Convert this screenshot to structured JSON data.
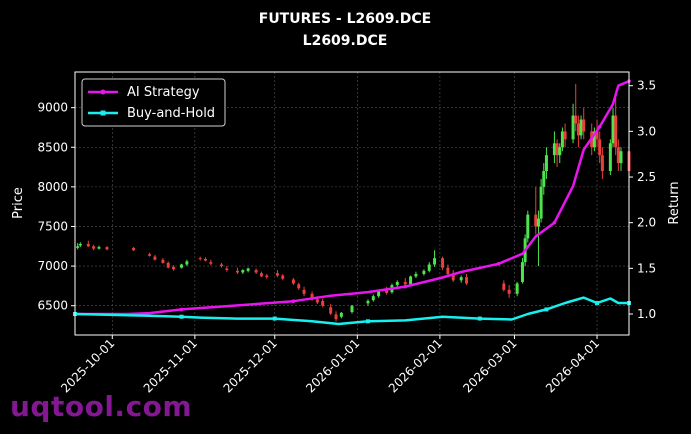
{
  "chart_data": {
    "type": "line",
    "title": "FUTURES - L2609.DCE",
    "subtitle": "L2609.DCE",
    "ylabel_left": "Price",
    "ylabel_right": "Return",
    "xlabel": "",
    "x_ticks": [
      "2025-10-01",
      "2025-11-01",
      "2025-12-01",
      "2026-01-01",
      "2026-02-01",
      "2026-03-01",
      "2026-04-01"
    ],
    "y_left_ticks": [
      6500,
      7000,
      7500,
      8000,
      8500,
      9000
    ],
    "y_right_ticks": [
      1.0,
      1.5,
      2.0,
      2.5,
      3.0,
      3.5
    ],
    "y_left_lim": [
      6130,
      9450
    ],
    "y_right_lim": [
      0.77,
      3.65
    ],
    "x_lim": [
      "2025-09-17",
      "2026-04-13"
    ],
    "grid": true,
    "legend_position": "top-left",
    "colors": {
      "up": "#4ee44e",
      "down": "#e8413c",
      "ai": "#e815f0",
      "bh": "#16f0ee",
      "grid": "#555555"
    },
    "series": [
      {
        "name": "AI Strategy",
        "axis": "right",
        "color": "#e815f0",
        "points": [
          [
            "2025-09-17",
            1.0
          ],
          [
            "2025-10-06",
            1.0
          ],
          [
            "2025-10-15",
            1.01
          ],
          [
            "2025-10-27",
            1.05
          ],
          [
            "2025-11-10",
            1.08
          ],
          [
            "2025-11-24",
            1.11
          ],
          [
            "2025-12-08",
            1.14
          ],
          [
            "2025-12-22",
            1.2
          ],
          [
            "2026-01-05",
            1.24
          ],
          [
            "2026-01-19",
            1.3
          ],
          [
            "2026-02-02",
            1.4
          ],
          [
            "2026-02-09",
            1.46
          ],
          [
            "2026-02-23",
            1.55
          ],
          [
            "2026-03-04",
            1.66
          ],
          [
            "2026-03-09",
            1.85
          ],
          [
            "2026-03-16",
            2.0
          ],
          [
            "2026-03-23",
            2.4
          ],
          [
            "2026-03-27",
            2.8
          ],
          [
            "2026-04-02",
            3.05
          ],
          [
            "2026-04-07",
            3.3
          ],
          [
            "2026-04-09",
            3.5
          ],
          [
            "2026-04-13",
            3.55
          ]
        ]
      },
      {
        "name": "Buy-and-Hold",
        "axis": "right",
        "color": "#16f0ee",
        "points": [
          [
            "2025-09-17",
            1.0
          ],
          [
            "2025-10-01",
            0.99
          ],
          [
            "2025-10-15",
            0.98
          ],
          [
            "2025-10-27",
            0.97
          ],
          [
            "2025-11-03",
            0.96
          ],
          [
            "2025-11-17",
            0.95
          ],
          [
            "2025-12-01",
            0.95
          ],
          [
            "2025-12-15",
            0.92
          ],
          [
            "2025-12-25",
            0.89
          ],
          [
            "2026-01-05",
            0.92
          ],
          [
            "2026-01-19",
            0.93
          ],
          [
            "2026-02-02",
            0.97
          ],
          [
            "2026-02-16",
            0.95
          ],
          [
            "2026-02-28",
            0.94
          ],
          [
            "2026-03-06",
            1.0
          ],
          [
            "2026-03-13",
            1.05
          ],
          [
            "2026-03-20",
            1.12
          ],
          [
            "2026-03-27",
            1.18
          ],
          [
            "2026-04-01",
            1.12
          ],
          [
            "2026-04-06",
            1.17
          ],
          [
            "2026-04-09",
            1.12
          ],
          [
            "2026-04-13",
            1.12
          ]
        ]
      }
    ],
    "candles": [
      [
        "2025-09-18",
        7230,
        7290,
        7250,
        7210
      ],
      [
        "2025-09-19",
        7260,
        7300,
        7280,
        7240
      ],
      [
        "2025-09-22",
        7280,
        7320,
        7250,
        7240
      ],
      [
        "2025-09-24",
        7250,
        7270,
        7220,
        7200
      ],
      [
        "2025-09-26",
        7220,
        7260,
        7240,
        7210
      ],
      [
        "2025-09-29",
        7240,
        7250,
        7210,
        7200
      ],
      [
        "2025-10-09",
        7230,
        7240,
        7200,
        7190
      ],
      [
        "2025-10-15",
        7150,
        7170,
        7130,
        7120
      ],
      [
        "2025-10-17",
        7120,
        7140,
        7080,
        7070
      ],
      [
        "2025-10-20",
        7080,
        7100,
        7040,
        7030
      ],
      [
        "2025-10-22",
        7040,
        7060,
        6980,
        6970
      ],
      [
        "2025-10-24",
        6990,
        7010,
        6960,
        6940
      ],
      [
        "2025-10-27",
        6980,
        7030,
        7020,
        6970
      ],
      [
        "2025-10-29",
        7020,
        7080,
        7060,
        7000
      ],
      [
        "2025-11-03",
        7100,
        7120,
        7090,
        7070
      ],
      [
        "2025-11-05",
        7090,
        7110,
        7070,
        7060
      ],
      [
        "2025-11-07",
        7050,
        7080,
        7030,
        7010
      ],
      [
        "2025-11-11",
        7020,
        7040,
        7000,
        6980
      ],
      [
        "2025-11-13",
        6970,
        7000,
        6950,
        6930
      ],
      [
        "2025-11-17",
        6940,
        6980,
        6920,
        6900
      ],
      [
        "2025-11-19",
        6920,
        6960,
        6950,
        6900
      ],
      [
        "2025-11-21",
        6940,
        6980,
        6970,
        6920
      ],
      [
        "2025-11-24",
        6950,
        6970,
        6920,
        6900
      ],
      [
        "2025-11-26",
        6910,
        6930,
        6870,
        6860
      ],
      [
        "2025-11-28",
        6880,
        6900,
        6860,
        6840
      ],
      [
        "2025-12-02",
        6910,
        6950,
        6880,
        6860
      ],
      [
        "2025-12-04",
        6880,
        6900,
        6840,
        6820
      ],
      [
        "2025-12-08",
        6830,
        6850,
        6780,
        6760
      ],
      [
        "2025-12-10",
        6770,
        6790,
        6720,
        6700
      ],
      [
        "2025-12-12",
        6700,
        6740,
        6650,
        6620
      ],
      [
        "2025-12-15",
        6650,
        6680,
        6590,
        6560
      ],
      [
        "2025-12-17",
        6580,
        6620,
        6540,
        6520
      ],
      [
        "2025-12-19",
        6560,
        6590,
        6500,
        6480
      ],
      [
        "2025-12-22",
        6480,
        6520,
        6400,
        6380
      ],
      [
        "2025-12-24",
        6390,
        6430,
        6330,
        6300
      ],
      [
        "2025-12-26",
        6360,
        6420,
        6410,
        6340
      ],
      [
        "2025-12-30",
        6420,
        6510,
        6500,
        6400
      ],
      [
        "2026-01-05",
        6530,
        6580,
        6560,
        6500
      ],
      [
        "2026-01-07",
        6570,
        6640,
        6620,
        6550
      ],
      [
        "2026-01-09",
        6620,
        6700,
        6690,
        6600
      ],
      [
        "2026-01-12",
        6700,
        6740,
        6660,
        6640
      ],
      [
        "2026-01-14",
        6670,
        6780,
        6760,
        6650
      ],
      [
        "2026-01-16",
        6760,
        6820,
        6800,
        6740
      ],
      [
        "2026-01-19",
        6800,
        6850,
        6770,
        6740
      ],
      [
        "2026-01-21",
        6770,
        6880,
        6870,
        6750
      ],
      [
        "2026-01-23",
        6870,
        6930,
        6900,
        6850
      ],
      [
        "2026-01-26",
        6900,
        6960,
        6940,
        6880
      ],
      [
        "2026-01-28",
        6940,
        7050,
        7020,
        6920
      ],
      [
        "2026-01-30",
        7020,
        7200,
        7100,
        6990
      ],
      [
        "2026-02-02",
        7100,
        7120,
        6980,
        6950
      ],
      [
        "2026-02-04",
        6980,
        7020,
        6900,
        6880
      ],
      [
        "2026-02-06",
        6900,
        6950,
        6820,
        6800
      ],
      [
        "2026-02-09",
        6820,
        6880,
        6860,
        6790
      ],
      [
        "2026-02-11",
        6860,
        6900,
        6780,
        6760
      ],
      [
        "2026-02-25",
        6780,
        6820,
        6700,
        6680
      ],
      [
        "2026-02-27",
        6700,
        6760,
        6650,
        6600
      ],
      [
        "2026-03-02",
        6650,
        6800,
        6780,
        6620
      ],
      [
        "2026-03-04",
        6800,
        7100,
        7050,
        6780
      ],
      [
        "2026-03-05",
        7050,
        7400,
        7350,
        7000
      ],
      [
        "2026-03-06",
        7350,
        7700,
        7650,
        7300
      ],
      [
        "2026-03-09",
        7650,
        8000,
        7500,
        7400
      ],
      [
        "2026-03-10",
        7500,
        7700,
        7600,
        7000
      ],
      [
        "2026-03-11",
        7600,
        8100,
        8000,
        7550
      ],
      [
        "2026-03-12",
        8000,
        8300,
        8200,
        7900
      ],
      [
        "2026-03-13",
        8200,
        8500,
        8400,
        8100
      ],
      [
        "2026-03-16",
        8400,
        8700,
        8550,
        8300
      ],
      [
        "2026-03-17",
        8550,
        8600,
        8400,
        8250
      ],
      [
        "2026-03-18",
        8400,
        8550,
        8500,
        8300
      ],
      [
        "2026-03-19",
        8500,
        8750,
        8700,
        8450
      ],
      [
        "2026-03-20",
        8700,
        8800,
        8600,
        8500
      ],
      [
        "2026-03-23",
        8600,
        9050,
        8900,
        8550
      ],
      [
        "2026-03-24",
        8900,
        9300,
        8800,
        8700
      ],
      [
        "2026-03-25",
        8800,
        8900,
        8650,
        8500
      ],
      [
        "2026-03-26",
        8650,
        8900,
        8850,
        8600
      ],
      [
        "2026-03-27",
        8850,
        9000,
        8700,
        8600
      ],
      [
        "2026-03-30",
        8700,
        8800,
        8500,
        8400
      ],
      [
        "2026-03-31",
        8500,
        8750,
        8700,
        8450
      ],
      [
        "2026-04-01",
        8700,
        8850,
        8600,
        8500
      ],
      [
        "2026-04-02",
        8600,
        8700,
        8400,
        8300
      ],
      [
        "2026-04-03",
        8400,
        8500,
        8200,
        8100
      ],
      [
        "2026-04-06",
        8200,
        8600,
        8550,
        8150
      ],
      [
        "2026-04-07",
        8550,
        9000,
        8900,
        8500
      ],
      [
        "2026-04-08",
        8900,
        9150,
        8500,
        8400
      ],
      [
        "2026-04-09",
        8500,
        8600,
        8300,
        8200
      ],
      [
        "2026-04-10",
        8300,
        8500,
        8450,
        8200
      ],
      [
        "2026-04-13",
        8450,
        8500,
        8200,
        8100
      ]
    ]
  },
  "legend": {
    "ai_label": "AI Strategy",
    "bh_label": "Buy-and-Hold"
  },
  "watermark": "uqtool.com"
}
